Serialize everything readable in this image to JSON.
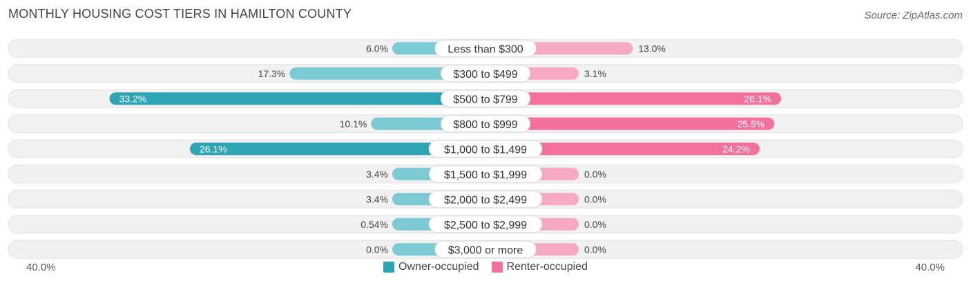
{
  "title": "MONTHLY HOUSING COST TIERS IN HAMILTON COUNTY",
  "source": "Source: ZipAtlas.com",
  "axis": {
    "left_label": "40.0%",
    "right_label": "40.0%"
  },
  "colors": {
    "owner_strong": "#2ea5b5",
    "owner_light": "#7ccad4",
    "renter_strong": "#f2709b",
    "renter_light": "#f7a8c2",
    "row_bg": "#f1f1f1"
  },
  "legend": [
    {
      "label": "Owner-occupied",
      "color": "#2ea5b5"
    },
    {
      "label": "Renter-occupied",
      "color": "#f2709b"
    }
  ],
  "chart_data": {
    "type": "bar",
    "orientation": "diverging-horizontal",
    "xlim": [
      -40,
      40
    ],
    "categories": [
      "Less than $300",
      "$300 to $499",
      "$500 to $799",
      "$800 to $999",
      "$1,000 to $1,499",
      "$1,500 to $1,999",
      "$2,000 to $2,499",
      "$2,500 to $2,999",
      "$3,000 or more"
    ],
    "series": [
      {
        "name": "Owner-occupied",
        "values": [
          6.0,
          17.3,
          33.2,
          10.1,
          26.1,
          3.4,
          3.4,
          0.54,
          0.0
        ],
        "labels": [
          "6.0%",
          "17.3%",
          "33.2%",
          "10.1%",
          "26.1%",
          "3.4%",
          "3.4%",
          "0.54%",
          "0.0%"
        ]
      },
      {
        "name": "Renter-occupied",
        "values": [
          13.0,
          3.1,
          26.1,
          25.5,
          24.2,
          0.0,
          0.0,
          0.0,
          0.0
        ],
        "labels": [
          "13.0%",
          "3.1%",
          "26.1%",
          "25.5%",
          "24.2%",
          "0.0%",
          "0.0%",
          "0.0%",
          "0.0%"
        ]
      }
    ]
  }
}
